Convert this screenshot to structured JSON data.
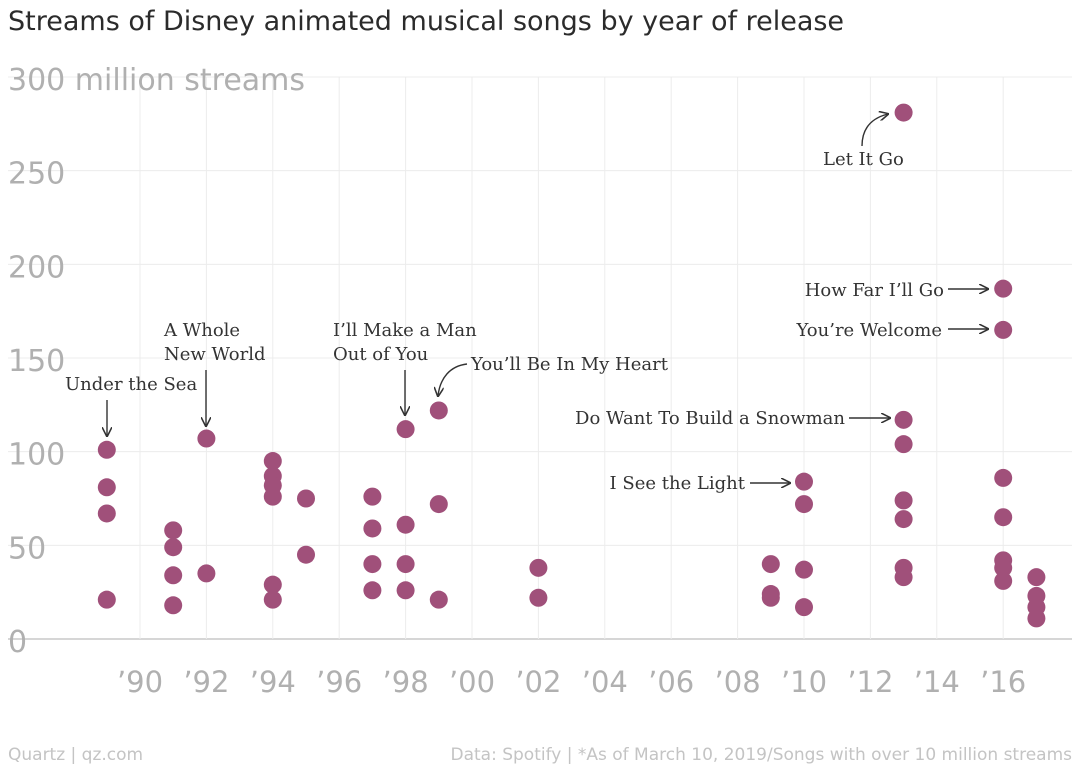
{
  "chart_data": {
    "type": "scatter",
    "title": "Streams of Disney animated musical songs by year of release",
    "ylabel": "300 million streams",
    "ylim": [
      0,
      300
    ],
    "xlim": [
      1988,
      2018
    ],
    "y_ticks": [
      {
        "value": 300,
        "label": "300 million streams"
      },
      {
        "value": 250,
        "label": "250"
      },
      {
        "value": 200,
        "label": "200"
      },
      {
        "value": 150,
        "label": "150"
      },
      {
        "value": 100,
        "label": "100"
      },
      {
        "value": 50,
        "label": "50"
      },
      {
        "value": 0,
        "label": "0"
      }
    ],
    "x_ticks": [
      {
        "value": 1990,
        "label": "’90"
      },
      {
        "value": 1992,
        "label": "’92"
      },
      {
        "value": 1994,
        "label": "’94"
      },
      {
        "value": 1996,
        "label": "’96"
      },
      {
        "value": 1998,
        "label": "’98"
      },
      {
        "value": 2000,
        "label": "’00"
      },
      {
        "value": 2002,
        "label": "’02"
      },
      {
        "value": 2004,
        "label": "’04"
      },
      {
        "value": 2006,
        "label": "’06"
      },
      {
        "value": 2008,
        "label": "’08"
      },
      {
        "value": 2010,
        "label": "’10"
      },
      {
        "value": 2012,
        "label": "’12"
      },
      {
        "value": 2014,
        "label": "’14"
      },
      {
        "value": 2016,
        "label": "’16"
      }
    ],
    "grid": true,
    "marker_color": "#a0507a",
    "points": [
      {
        "x": 1989,
        "y": 101
      },
      {
        "x": 1989,
        "y": 81
      },
      {
        "x": 1989,
        "y": 67
      },
      {
        "x": 1989,
        "y": 21
      },
      {
        "x": 1991,
        "y": 58
      },
      {
        "x": 1991,
        "y": 49
      },
      {
        "x": 1991,
        "y": 34
      },
      {
        "x": 1991,
        "y": 18
      },
      {
        "x": 1992,
        "y": 107
      },
      {
        "x": 1992,
        "y": 35
      },
      {
        "x": 1994,
        "y": 95
      },
      {
        "x": 1994,
        "y": 87
      },
      {
        "x": 1994,
        "y": 82
      },
      {
        "x": 1994,
        "y": 76
      },
      {
        "x": 1994,
        "y": 29
      },
      {
        "x": 1994,
        "y": 21
      },
      {
        "x": 1995,
        "y": 75
      },
      {
        "x": 1995,
        "y": 45
      },
      {
        "x": 1997,
        "y": 76
      },
      {
        "x": 1997,
        "y": 59
      },
      {
        "x": 1997,
        "y": 40
      },
      {
        "x": 1997,
        "y": 26
      },
      {
        "x": 1998,
        "y": 112
      },
      {
        "x": 1998,
        "y": 61
      },
      {
        "x": 1998,
        "y": 40
      },
      {
        "x": 1998,
        "y": 26
      },
      {
        "x": 1999,
        "y": 122
      },
      {
        "x": 1999,
        "y": 72
      },
      {
        "x": 1999,
        "y": 21
      },
      {
        "x": 2002,
        "y": 38
      },
      {
        "x": 2002,
        "y": 22
      },
      {
        "x": 2009,
        "y": 40
      },
      {
        "x": 2009,
        "y": 24
      },
      {
        "x": 2009,
        "y": 22
      },
      {
        "x": 2010,
        "y": 84
      },
      {
        "x": 2010,
        "y": 72
      },
      {
        "x": 2010,
        "y": 37
      },
      {
        "x": 2010,
        "y": 17
      },
      {
        "x": 2013,
        "y": 281
      },
      {
        "x": 2013,
        "y": 117
      },
      {
        "x": 2013,
        "y": 104
      },
      {
        "x": 2013,
        "y": 74
      },
      {
        "x": 2013,
        "y": 64
      },
      {
        "x": 2013,
        "y": 38
      },
      {
        "x": 2013,
        "y": 33
      },
      {
        "x": 2016,
        "y": 187
      },
      {
        "x": 2016,
        "y": 165
      },
      {
        "x": 2016,
        "y": 86
      },
      {
        "x": 2016,
        "y": 65
      },
      {
        "x": 2016,
        "y": 42
      },
      {
        "x": 2016,
        "y": 38
      },
      {
        "x": 2016,
        "y": 31
      },
      {
        "x": 2017,
        "y": 33
      },
      {
        "x": 2017,
        "y": 23
      },
      {
        "x": 2017,
        "y": 17
      },
      {
        "x": 2017,
        "y": 11
      }
    ],
    "annotations": [
      {
        "label": "Under the Sea",
        "x": 1989,
        "y": 101
      },
      {
        "label": "A Whole\nNew World",
        "x": 1992,
        "y": 107
      },
      {
        "label": "I’ll Make a Man\nOut of You",
        "x": 1998,
        "y": 112
      },
      {
        "label": "You’ll Be In My Heart",
        "x": 1999,
        "y": 122
      },
      {
        "label": "Let It Go",
        "x": 2013,
        "y": 281
      },
      {
        "label": "How Far I’ll Go",
        "x": 2016,
        "y": 187
      },
      {
        "label": "You’re Welcome",
        "x": 2016,
        "y": 165
      },
      {
        "label": "Do Want To Build a Snowman",
        "x": 2013,
        "y": 117
      },
      {
        "label": "I See the Light",
        "x": 2010,
        "y": 84
      }
    ]
  },
  "footer": {
    "source_left": "Quartz | qz.com",
    "source_right": "Data: Spotify | *As of March 10, 2019/Songs with over 10 million streams"
  }
}
